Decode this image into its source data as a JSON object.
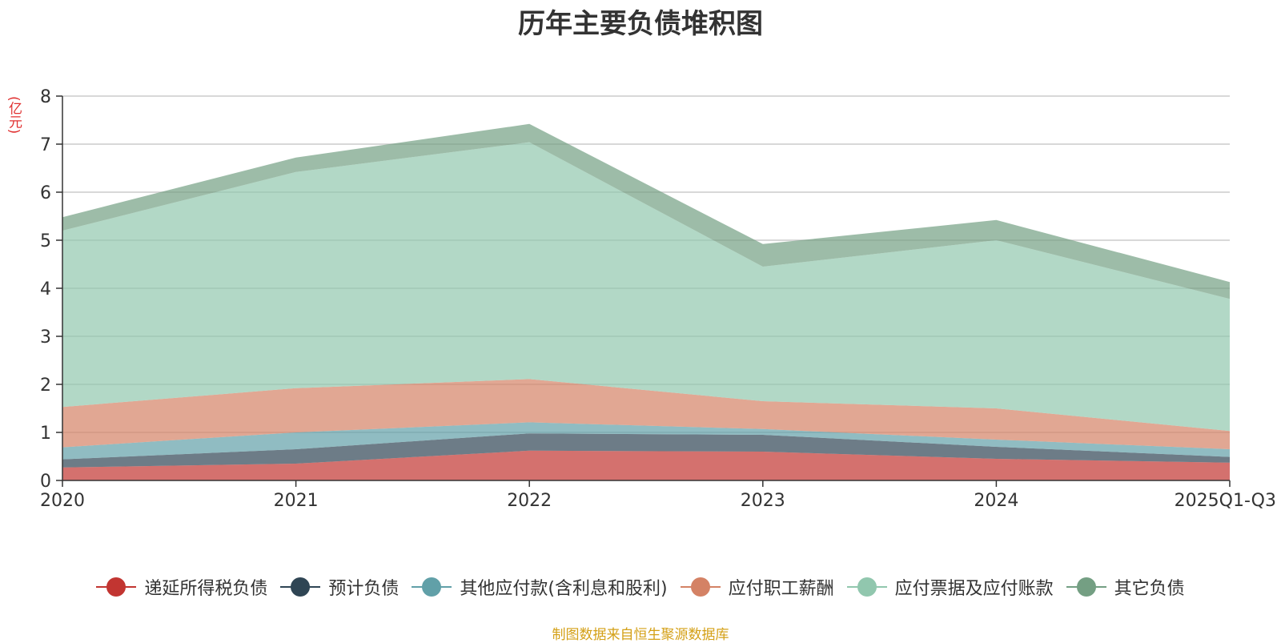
{
  "chart_data": {
    "type": "area",
    "stacked": true,
    "title": "历年主要负债堆积图",
    "ylabel": "(亿元)",
    "xlabel": "",
    "categories": [
      "2020",
      "2021",
      "2022",
      "2023",
      "2024",
      "2025Q1-Q3"
    ],
    "ylim": [
      0,
      8
    ],
    "yticks": [
      0,
      1,
      2,
      3,
      4,
      5,
      6,
      7,
      8
    ],
    "grid": true,
    "legend_position": "bottom",
    "series": [
      {
        "name": "递延所得税负债",
        "color": "#c23531",
        "values": [
          0.27,
          0.35,
          0.62,
          0.6,
          0.45,
          0.37
        ]
      },
      {
        "name": "预计负债",
        "color": "#2f4554",
        "values": [
          0.17,
          0.3,
          0.36,
          0.35,
          0.25,
          0.12
        ]
      },
      {
        "name": "其他应付款(含利息和股利)",
        "color": "#61a0a8",
        "values": [
          0.25,
          0.35,
          0.23,
          0.12,
          0.15,
          0.16
        ]
      },
      {
        "name": "应付职工薪酬",
        "color": "#d48265",
        "values": [
          0.84,
          0.92,
          0.9,
          0.58,
          0.65,
          0.38
        ]
      },
      {
        "name": "应付票据及应付账款",
        "color": "#91c7ae",
        "values": [
          3.67,
          4.5,
          4.93,
          2.8,
          3.5,
          2.75
        ]
      },
      {
        "name": "其它负债",
        "color": "#749f83",
        "values": [
          0.28,
          0.3,
          0.38,
          0.47,
          0.42,
          0.35
        ]
      }
    ]
  },
  "footer": {
    "source_note": "制图数据来自恒生聚源数据库"
  }
}
